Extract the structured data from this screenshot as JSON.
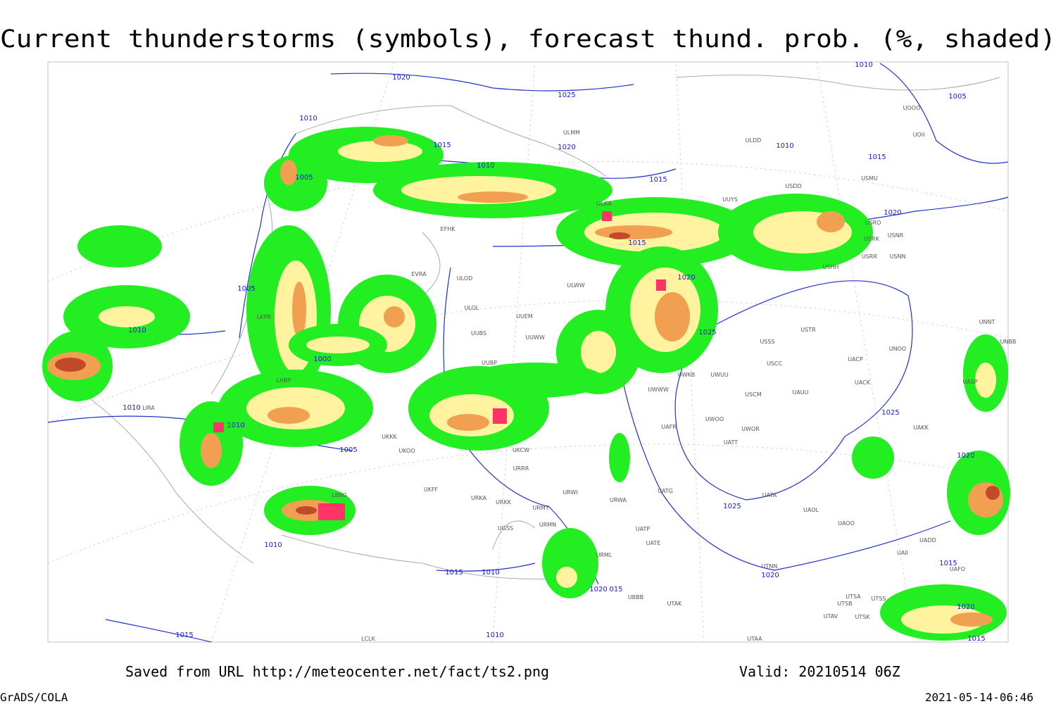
{
  "title": "Current thunderstorms (symbols), forecast thund. prob. (%, shaded)",
  "footer": {
    "source": "Saved from URL http://meteocenter.net/fact/ts2.png",
    "valid": "Valid: 20210514 06Z",
    "software": "GrADS/COLA",
    "timestamp": "2021-05-14-06:46"
  },
  "isobar_labels": [
    "1020",
    "1025",
    "1010",
    "1005",
    "1010",
    "1015",
    "1020",
    "1010",
    "1015",
    "1010",
    "1005",
    "1015",
    "1020",
    "1015",
    "1020",
    "1005",
    "1010",
    "1025",
    "1000",
    "1010",
    "1010",
    "1005",
    "1025",
    "1020",
    "1025",
    "1010",
    "1015",
    "1010",
    "1020",
    "1015",
    "1020",
    "015",
    "1015",
    "1010",
    "1020",
    "1015"
  ],
  "station_labels": [
    "ULAA",
    "ULDD",
    "ULMM",
    "USDD",
    "UUYS",
    "USMU",
    "UOOO",
    "UOII",
    "USRO",
    "USRK",
    "USNR",
    "USRR",
    "USNN",
    "USHH",
    "EFHK",
    "EVRA",
    "ULOD",
    "ULOL",
    "ULWW",
    "UUEM",
    "UUWW",
    "UUBS",
    "UUBP",
    "USSS",
    "USTR",
    "UNOO",
    "UNNT",
    "UNBB",
    "USCC",
    "UACP",
    "UACK",
    "UASP",
    "UWUU",
    "UWKB",
    "USCM",
    "UAUU",
    "UWWW",
    "UWOO",
    "UWOR",
    "UATT",
    "UAFR",
    "UAKK",
    "LIRA",
    "LKPR",
    "LHBP",
    "UKKK",
    "UKOO",
    "UKCW",
    "URRR",
    "UKFF",
    "URKA",
    "URKK",
    "URWI",
    "URMT",
    "URMN",
    "URWA",
    "UATG",
    "UATP",
    "UATE",
    "UATA",
    "UAOL",
    "UAOO",
    "UADD",
    "URML",
    "UTNN",
    "UGSS",
    "UTSB",
    "UTSA",
    "UTSS",
    "UTAV",
    "UTSK",
    "UTAK",
    "UBBB",
    "LBBG",
    "LCLK",
    "UTAA",
    "UAII",
    "UAFO"
  ]
}
